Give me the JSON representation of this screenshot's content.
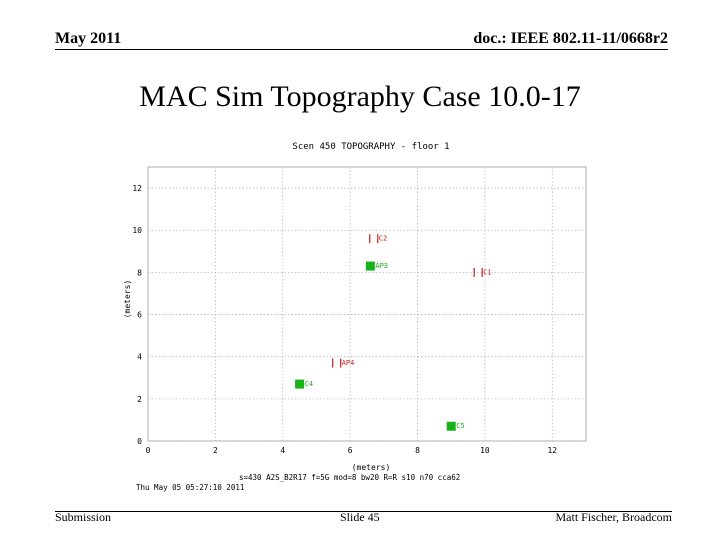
{
  "header": {
    "date": "May 2011",
    "doc": "doc.: IEEE 802.11-11/0668r2"
  },
  "slide": {
    "title": "MAC Sim Topography Case 10.0-17"
  },
  "footer": {
    "left": "Submission",
    "center": "Slide 45",
    "right": "Matt Fischer, Broadcom"
  },
  "colors": {
    "grid": "#b8b8b8",
    "active_node": "#19b319",
    "inactive_node": "#c42020",
    "axis_text": "#000000"
  },
  "chart_data": {
    "type": "scatter",
    "title": "Scen 450 TOPOGRAPHY - floor 1",
    "xlabel": "(meters)",
    "ylabel": "(meters)",
    "xlim": [
      0,
      13
    ],
    "ylim": [
      0,
      13
    ],
    "grid": true,
    "x_ticks": [
      0,
      2,
      4,
      6,
      8,
      10,
      12
    ],
    "y_ticks": [
      0,
      2,
      4,
      6,
      8,
      10,
      12
    ],
    "series": [
      {
        "points": [
          {
            "label": "AP3",
            "x": 6.6,
            "y": 8.3
          },
          {
            "label": "C4",
            "x": 4.5,
            "y": 2.7
          },
          {
            "label": "C5",
            "x": 9.0,
            "y": 0.7
          }
        ]
      },
      {
        "points": [
          {
            "label": "C2",
            "x": 6.7,
            "y": 9.6
          },
          {
            "label": "C1",
            "x": 9.8,
            "y": 8.0
          },
          {
            "label": "AP4",
            "x": 5.6,
            "y": 3.7
          }
        ]
      }
    ],
    "caption_line1": "s=430 A2S_B2R17 f=5G mod=8 bw20 R=R  s10 n70 cca62",
    "caption_line2": "Thu May 05 05:27:10 2011"
  }
}
